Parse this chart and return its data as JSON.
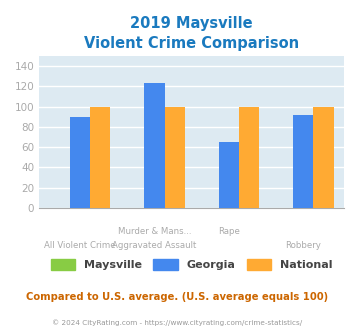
{
  "title_line1": "2019 Maysville",
  "title_line2": "Violent Crime Comparison",
  "title_color": "#1a7abf",
  "xlabel_top": [
    "",
    "Murder & Mans...",
    "Rape",
    ""
  ],
  "xlabel_bottom": [
    "All Violent Crime",
    "Aggravated Assault",
    "",
    "Robbery"
  ],
  "maysville": [
    0,
    0,
    0,
    0
  ],
  "georgia": [
    90,
    123,
    65,
    92
  ],
  "national": [
    100,
    100,
    100,
    100
  ],
  "maysville_color": "#88cc44",
  "georgia_color": "#4488ee",
  "national_color": "#ffaa33",
  "ylim": [
    0,
    150
  ],
  "yticks": [
    0,
    20,
    40,
    60,
    80,
    100,
    120,
    140
  ],
  "plot_bg": "#ddeaf2",
  "grid_color": "#ffffff",
  "legend_labels": [
    "Maysville",
    "Georgia",
    "National"
  ],
  "footer_text": "Compared to U.S. average. (U.S. average equals 100)",
  "footer_color": "#cc6600",
  "copyright_text": "© 2024 CityRating.com - https://www.cityrating.com/crime-statistics/",
  "copyright_color": "#999999",
  "tick_color": "#aaaaaa",
  "bar_width": 0.27
}
